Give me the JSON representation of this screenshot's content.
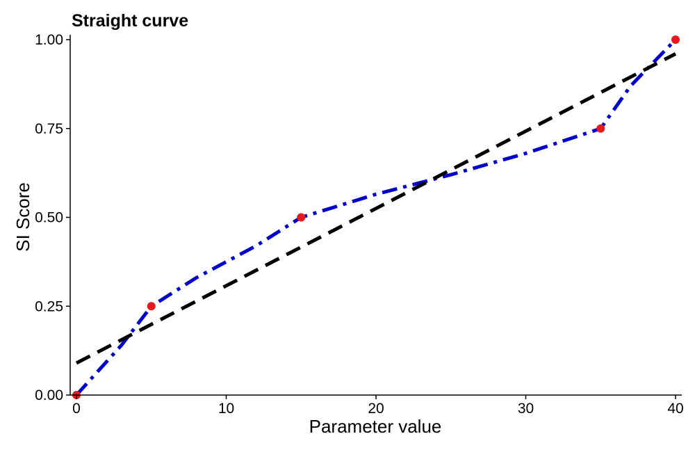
{
  "chart_data": {
    "type": "line",
    "title": "Straight curve",
    "xlabel": "Parameter value",
    "ylabel": "SI Score",
    "xlim": [
      -0.5,
      40.5
    ],
    "ylim": [
      0,
      1
    ],
    "x_ticks": [
      0,
      10,
      20,
      30,
      40
    ],
    "x_tick_labels": [
      "0",
      "10",
      "20",
      "30",
      "40"
    ],
    "y_ticks": [
      0,
      0.25,
      0.5,
      0.75,
      1
    ],
    "y_tick_labels": [
      "0.00",
      "0.25",
      "0.50",
      "0.75",
      "1.00"
    ],
    "grid": false,
    "legend": "none",
    "series": [
      {
        "style": "points",
        "color": "#e41a1c",
        "x": [
          0,
          5,
          15,
          35,
          40
        ],
        "y": [
          0,
          0.25,
          0.5,
          0.75,
          1
        ]
      },
      {
        "style": "dotdash",
        "color": "#0000cd",
        "x": [
          0,
          3,
          5,
          8,
          12,
          15,
          20,
          25,
          30,
          35,
          37,
          40
        ],
        "y": [
          0,
          0.14,
          0.25,
          0.33,
          0.42,
          0.5,
          0.565,
          0.62,
          0.68,
          0.75,
          0.87,
          1
        ]
      },
      {
        "style": "dashed",
        "color": "#000000",
        "x": [
          0,
          40
        ],
        "y": [
          0.09,
          0.96
        ]
      }
    ]
  }
}
